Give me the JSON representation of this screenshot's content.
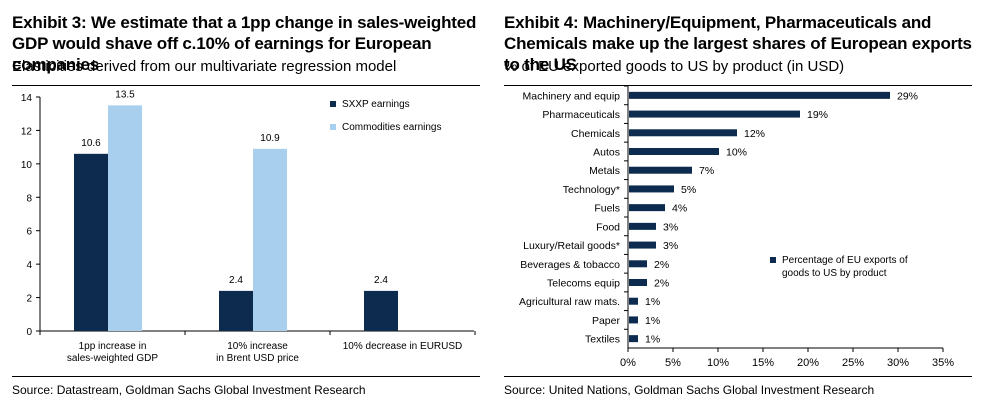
{
  "left": {
    "title": "Exhibit 3: We estimate that a 1pp change in sales-weighted GDP would shave off c.10% of earnings for European companies",
    "subtitle": "Elasticities derived from our multivariate regression model",
    "source": "Source: Datastream, Goldman Sachs Global Investment Research"
  },
  "right": {
    "title": "Exhibit 4: Machinery/Equipment, Pharmaceuticals and Chemicals make up the largest shares of European exports to the US",
    "subtitle": "% of EU exported goods to US by product (in USD)",
    "source": "Source: United Nations, Goldman Sachs Global Investment Research"
  },
  "chart_data": [
    {
      "type": "bar",
      "categories": [
        "1pp increase in\nsales-weighted GDP",
        "10% increase\nin Brent USD price",
        "10% decrease in EURUSD"
      ],
      "series": [
        {
          "name": "SXXP earnings",
          "values": [
            10.6,
            2.4,
            2.4
          ],
          "color": "#0d2b4e"
        },
        {
          "name": "Commodities earnings",
          "values": [
            13.5,
            10.9,
            null
          ],
          "color": "#a9cfee"
        }
      ],
      "ylim": [
        0,
        14
      ],
      "yticks": [
        "0",
        "2",
        "4",
        "6",
        "8",
        "10",
        "12",
        "14"
      ],
      "data_labels": [
        [
          "10.6",
          "2.4",
          "2.4"
        ],
        [
          "13.5",
          "10.9",
          ""
        ]
      ],
      "legend_position": "right",
      "grid": false
    },
    {
      "type": "bar",
      "orientation": "horizontal",
      "categories": [
        "Machinery and equip",
        "Pharmaceuticals",
        "Chemicals",
        "Autos",
        "Metals",
        "Technology*",
        "Fuels",
        "Food",
        "Luxury/Retail goods*",
        "Beverages & tobacco",
        "Telecoms equip",
        "Agricultural raw mats.",
        "Paper",
        "Textiles"
      ],
      "series": [
        {
          "name": "Percentage of EU exports of goods to US by product",
          "values": [
            29,
            19,
            12,
            10,
            7,
            5,
            4,
            3,
            3,
            2,
            2,
            1,
            1,
            1
          ],
          "color": "#0d2b4e"
        }
      ],
      "data_labels": [
        "29%",
        "19%",
        "12%",
        "10%",
        "7%",
        "5%",
        "4%",
        "3%",
        "3%",
        "2%",
        "2%",
        "1%",
        "1%",
        "1%"
      ],
      "xlim": [
        0,
        35
      ],
      "xticks": [
        "0%",
        "5%",
        "10%",
        "15%",
        "20%",
        "25%",
        "30%",
        "35%"
      ],
      "legend_position": "right",
      "grid": false
    }
  ]
}
